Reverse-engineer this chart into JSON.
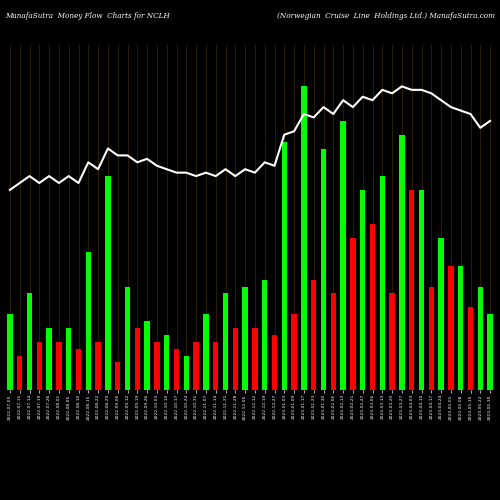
{
  "title_left": "ManafaSutra  Money Flow  Charts for NCLH",
  "title_right": "(Norwegian  Cruise  Line  Holdings Ltd.) ManafaSutra.com",
  "background_color": "#000000",
  "bar_color_positive": "#00ff00",
  "bar_color_negative": "#ff0000",
  "line_color": "#ffffff",
  "grid_color": "#2a1e00",
  "figsize": [
    5.0,
    5.0
  ],
  "dpi": 100,
  "categories": [
    "2022-07-05",
    "2022-07-11",
    "2022-07-14",
    "2022-07-19",
    "2022-07-26",
    "2022-08-01",
    "2022-08-05",
    "2022-08-10",
    "2022-08-15",
    "2022-08-22",
    "2022-08-29",
    "2022-09-06",
    "2022-09-12",
    "2022-09-19",
    "2022-09-26",
    "2022-10-03",
    "2022-10-10",
    "2022-10-17",
    "2022-10-24",
    "2022-10-31",
    "2022-11-07",
    "2022-11-14",
    "2022-11-21",
    "2022-11-28",
    "2022-12-05",
    "2022-12-12",
    "2022-12-19",
    "2022-12-27",
    "2023-01-03",
    "2023-01-09",
    "2023-01-17",
    "2023-01-23",
    "2023-01-30",
    "2023-02-06",
    "2023-02-13",
    "2023-02-21",
    "2023-02-27",
    "2023-03-06",
    "2023-03-13",
    "2023-03-20",
    "2023-03-27",
    "2023-04-03",
    "2023-04-10",
    "2023-04-17",
    "2023-04-24",
    "2023-05-01",
    "2023-05-08",
    "2023-05-15",
    "2023-05-22",
    "2023-05-30"
  ],
  "bar_heights": [
    22,
    10,
    28,
    14,
    18,
    14,
    18,
    12,
    40,
    14,
    62,
    8,
    30,
    18,
    20,
    14,
    16,
    12,
    10,
    14,
    22,
    14,
    28,
    18,
    30,
    18,
    32,
    16,
    72,
    22,
    88,
    32,
    70,
    28,
    78,
    44,
    58,
    48,
    62,
    28,
    74,
    58,
    58,
    30,
    44,
    36,
    36,
    24,
    30,
    22
  ],
  "bar_colors": [
    "g",
    "r",
    "g",
    "r",
    "g",
    "r",
    "g",
    "r",
    "g",
    "r",
    "g",
    "r",
    "g",
    "r",
    "g",
    "r",
    "g",
    "r",
    "g",
    "r",
    "g",
    "r",
    "g",
    "r",
    "g",
    "r",
    "g",
    "r",
    "g",
    "r",
    "g",
    "r",
    "g",
    "r",
    "g",
    "r",
    "g",
    "r",
    "g",
    "r",
    "g",
    "r",
    "g",
    "r",
    "g",
    "r",
    "g",
    "r",
    "g",
    "g"
  ],
  "line_values": [
    58,
    60,
    62,
    60,
    62,
    60,
    62,
    60,
    66,
    64,
    70,
    68,
    68,
    66,
    67,
    65,
    64,
    63,
    63,
    62,
    63,
    62,
    64,
    62,
    64,
    63,
    66,
    65,
    74,
    75,
    80,
    79,
    82,
    80,
    84,
    82,
    85,
    84,
    87,
    86,
    88,
    87,
    87,
    86,
    84,
    82,
    81,
    80,
    76,
    78
  ],
  "ylim_max": 100,
  "n_bars": 50
}
